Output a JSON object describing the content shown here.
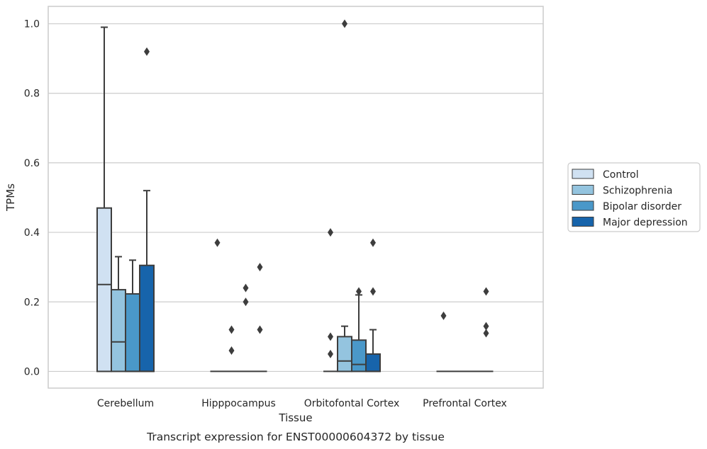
{
  "chart_data": {
    "type": "box",
    "xlabel": "Tissue",
    "ylabel": "TPMs",
    "caption": "Transcript expression for ENST00000604372 by tissue",
    "ylim": [
      -0.048,
      1.05
    ],
    "yticks": [
      0.0,
      0.2,
      0.4,
      0.6,
      0.8,
      1.0
    ],
    "ytick_labels": [
      "0.0",
      "0.2",
      "0.4",
      "0.6",
      "0.8",
      "1.0"
    ],
    "grid": "horizontal",
    "legend_position": "right",
    "categories": [
      "Cerebellum",
      "Hipppocampus",
      "Orbitofontal Cortex",
      "Prefrontal Cortex"
    ],
    "series": [
      {
        "name": "Control",
        "color": "#d0e1f2",
        "boxes": [
          {
            "q1": 0.0,
            "median": 0.25,
            "q3": 0.47,
            "whisker_low": 0.0,
            "whisker_high": 0.99,
            "outliers": []
          },
          {
            "q1": 0.0,
            "median": 0.0,
            "q3": 0.0,
            "whisker_low": 0.0,
            "whisker_high": 0.0,
            "outliers": [
              0.37
            ]
          },
          {
            "q1": 0.0,
            "median": 0.0,
            "q3": 0.0,
            "whisker_low": 0.0,
            "whisker_high": 0.0,
            "outliers": [
              0.4,
              0.1,
              0.05
            ]
          },
          {
            "q1": 0.0,
            "median": 0.0,
            "q3": 0.0,
            "whisker_low": 0.0,
            "whisker_high": 0.0,
            "outliers": [
              0.16
            ]
          }
        ]
      },
      {
        "name": "Schizophrenia",
        "color": "#94c4df",
        "boxes": [
          {
            "q1": 0.0,
            "median": 0.085,
            "q3": 0.235,
            "whisker_low": 0.0,
            "whisker_high": 0.33,
            "outliers": []
          },
          {
            "q1": 0.0,
            "median": 0.0,
            "q3": 0.0,
            "whisker_low": 0.0,
            "whisker_high": 0.0,
            "outliers": [
              0.12,
              0.06
            ]
          },
          {
            "q1": 0.0,
            "median": 0.03,
            "q3": 0.1,
            "whisker_low": 0.0,
            "whisker_high": 0.13,
            "outliers": [
              1.0
            ]
          },
          {
            "q1": 0.0,
            "median": 0.0,
            "q3": 0.0,
            "whisker_low": 0.0,
            "whisker_high": 0.0,
            "outliers": []
          }
        ]
      },
      {
        "name": "Bipolar disorder",
        "color": "#4a98c9",
        "boxes": [
          {
            "q1": 0.0,
            "median": 0.0,
            "q3": 0.223,
            "whisker_low": 0.0,
            "whisker_high": 0.32,
            "outliers": []
          },
          {
            "q1": 0.0,
            "median": 0.0,
            "q3": 0.0,
            "whisker_low": 0.0,
            "whisker_high": 0.0,
            "outliers": [
              0.24,
              0.2
            ]
          },
          {
            "q1": 0.0,
            "median": 0.02,
            "q3": 0.09,
            "whisker_low": 0.0,
            "whisker_high": 0.22,
            "outliers": [
              0.23
            ]
          },
          {
            "q1": 0.0,
            "median": 0.0,
            "q3": 0.0,
            "whisker_low": 0.0,
            "whisker_high": 0.0,
            "outliers": []
          }
        ]
      },
      {
        "name": "Major depression",
        "color": "#1764ab",
        "boxes": [
          {
            "q1": 0.0,
            "median": 0.0,
            "q3": 0.305,
            "whisker_low": 0.0,
            "whisker_high": 0.52,
            "outliers": [
              0.92
            ]
          },
          {
            "q1": 0.0,
            "median": 0.0,
            "q3": 0.0,
            "whisker_low": 0.0,
            "whisker_high": 0.0,
            "outliers": [
              0.3,
              0.12
            ]
          },
          {
            "q1": 0.0,
            "median": 0.0,
            "q3": 0.05,
            "whisker_low": 0.0,
            "whisker_high": 0.12,
            "outliers": [
              0.37,
              0.23
            ]
          },
          {
            "q1": 0.0,
            "median": 0.0,
            "q3": 0.0,
            "whisker_low": 0.0,
            "whisker_high": 0.0,
            "outliers": [
              0.23,
              0.13,
              0.11
            ]
          }
        ]
      }
    ]
  }
}
